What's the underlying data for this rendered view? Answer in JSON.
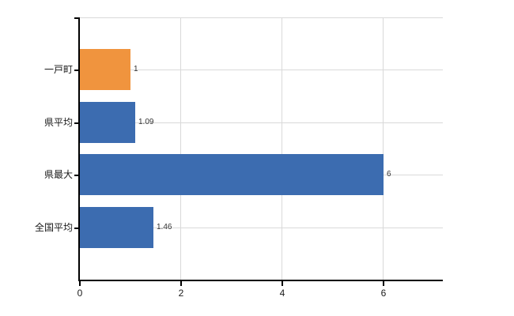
{
  "chart_data": {
    "type": "bar",
    "orientation": "horizontal",
    "title": "",
    "xlabel": "",
    "ylabel": "",
    "categories": [
      "一戸町",
      "県平均",
      "県最大",
      "全国平均"
    ],
    "values": [
      1,
      1.09,
      6,
      1.46
    ],
    "value_labels": [
      "1",
      "1.09",
      "6",
      "1.46"
    ],
    "bar_colors": [
      "#f0943e",
      "#3c6cb0",
      "#3c6cb0",
      "#3c6cb0"
    ],
    "highlight_category": "一戸町",
    "xlim": [
      0,
      7.2
    ],
    "xticks": [
      0,
      2,
      4,
      6
    ],
    "xtick_labels": [
      "0",
      "2",
      "4",
      "6"
    ],
    "grid": true,
    "legend": "none"
  },
  "colors": {
    "bar_blue": "#3c6cb0",
    "bar_orange": "#f0943e",
    "grid": "#d9d9d9",
    "axis": "#000000",
    "text": "#1a1a1a",
    "value_text": "#333333",
    "background": "#ffffff"
  }
}
